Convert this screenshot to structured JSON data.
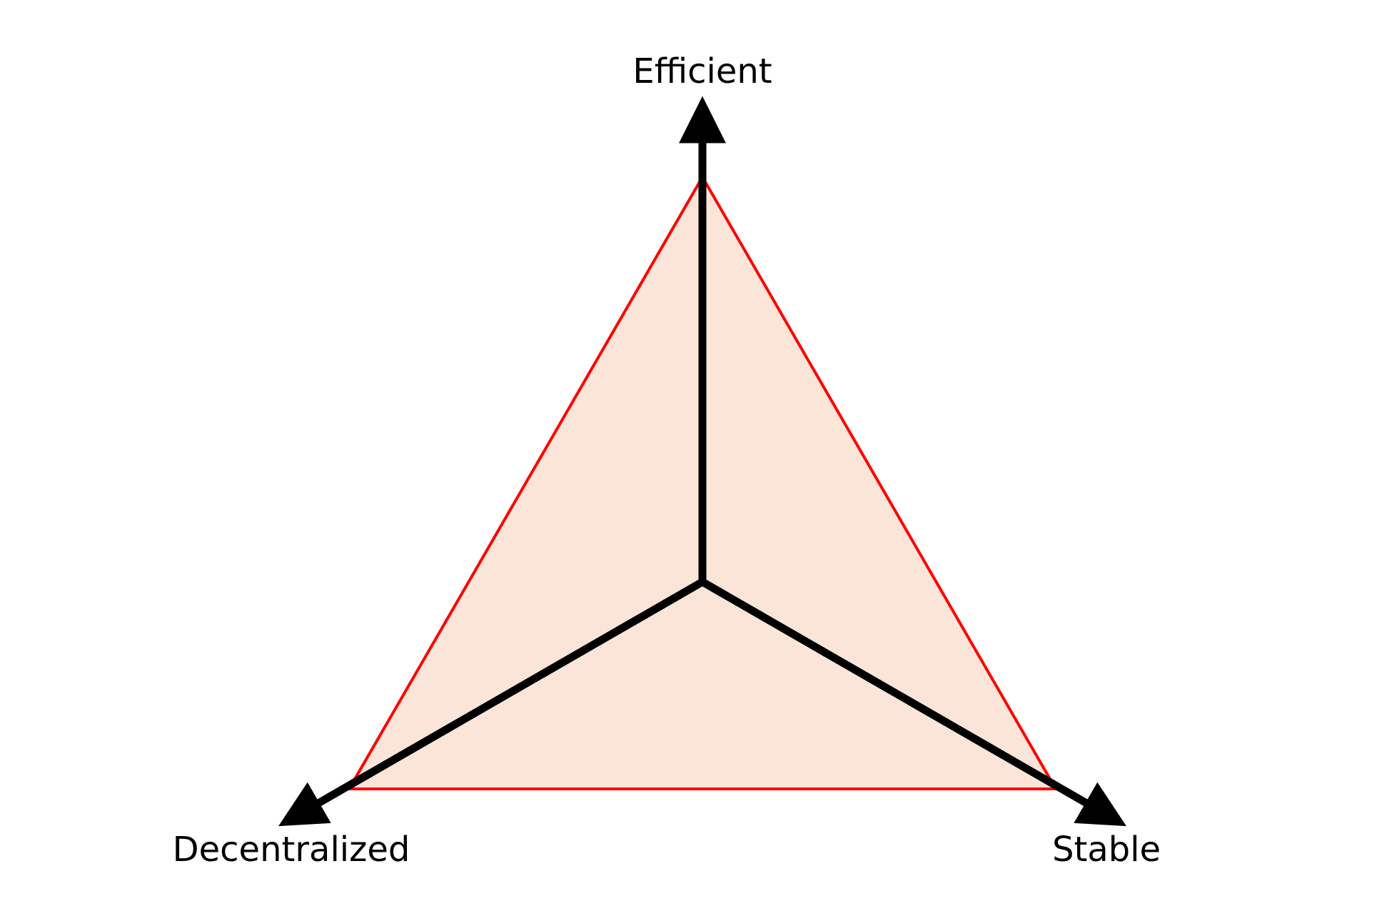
{
  "axes": {
    "top_label": "Efficient",
    "left_label": "Decentralized",
    "right_label": "Stable"
  },
  "colors": {
    "fill": "#fae5d8",
    "triangle_stroke": "#ff0000",
    "axis": "#000000"
  }
}
